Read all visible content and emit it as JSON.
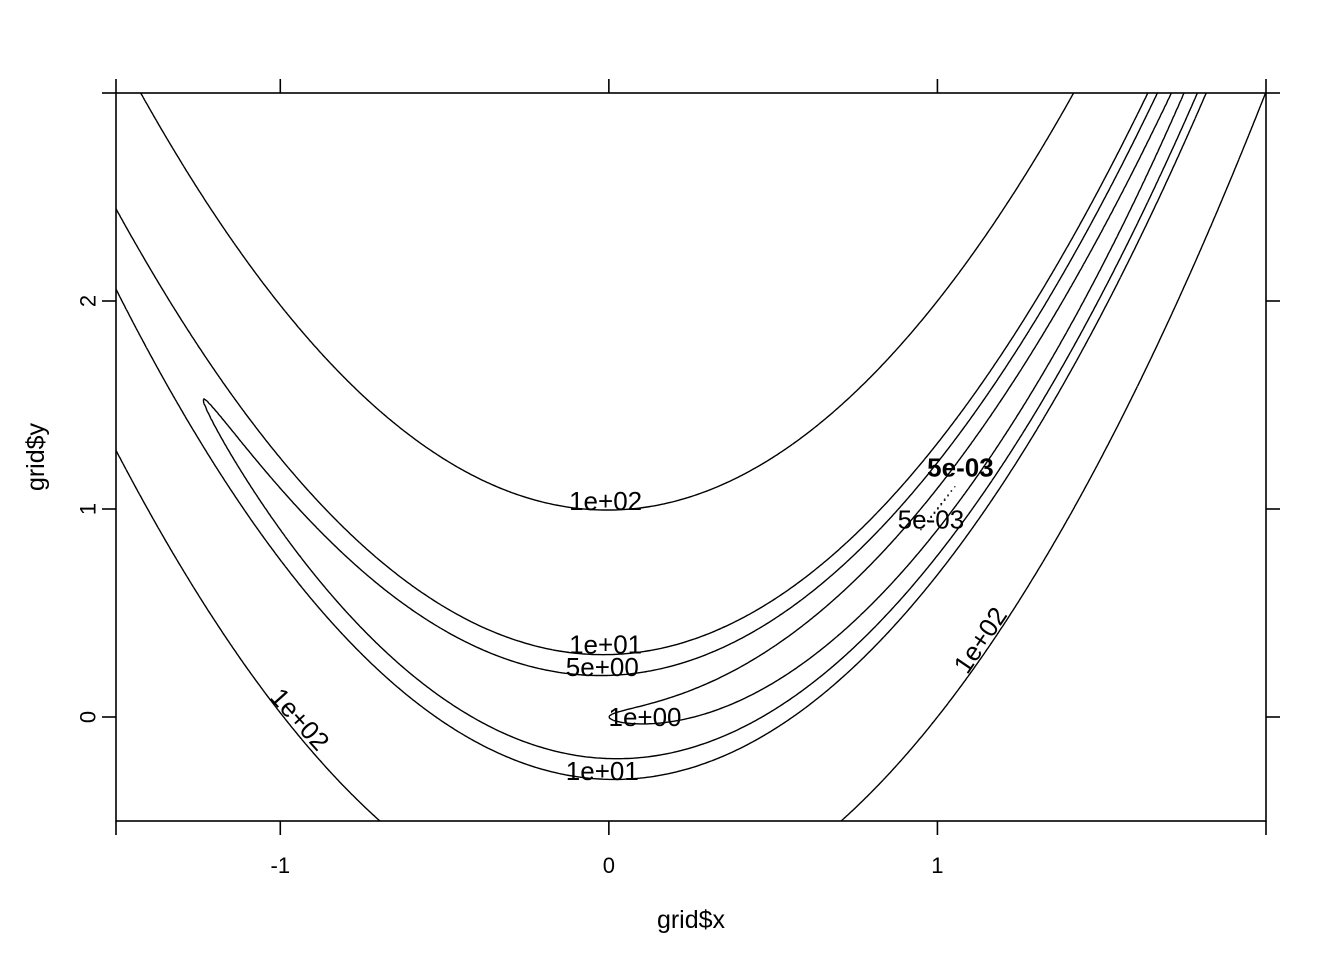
{
  "chart_data": {
    "type": "contour",
    "function": "rosenbrock",
    "xlabel": "grid$x",
    "ylabel": "grid$y",
    "xlim": [
      -1.5,
      2.0
    ],
    "ylim": [
      -0.5,
      3.0
    ],
    "x_ticks": [
      -1,
      0,
      1
    ],
    "y_ticks": [
      0,
      1,
      2
    ],
    "x_tick_labels": [
      "-1",
      "0",
      "1"
    ],
    "y_tick_labels": [
      "0",
      "1",
      "2"
    ],
    "levels": [
      0.005,
      1,
      5,
      10,
      100
    ],
    "labels": [
      {
        "text": "1e+02",
        "x": -0.01,
        "y": 1.04,
        "angle": 0,
        "bold": false
      },
      {
        "text": "1e+01",
        "x": -0.01,
        "y": 0.35,
        "angle": 0,
        "bold": false
      },
      {
        "text": "5e+00",
        "x": -0.02,
        "y": 0.24,
        "angle": 0,
        "bold": false
      },
      {
        "text": "1e+00",
        "x": 0.11,
        "y": 0.0,
        "angle": 0,
        "bold": false
      },
      {
        "text": "1e+01",
        "x": -0.02,
        "y": -0.26,
        "angle": 0,
        "bold": false
      },
      {
        "text": "1e+02",
        "x": -0.94,
        "y": -0.01,
        "angle": 48,
        "bold": false
      },
      {
        "text": "1e+02",
        "x": 1.13,
        "y": 0.37,
        "angle": -56,
        "bold": false
      },
      {
        "text": "5e-03",
        "x": 0.98,
        "y": 0.95,
        "angle": 0,
        "bold": false
      },
      {
        "text": "5e-03",
        "x": 1.07,
        "y": 1.2,
        "angle": 0,
        "bold": true
      }
    ]
  }
}
